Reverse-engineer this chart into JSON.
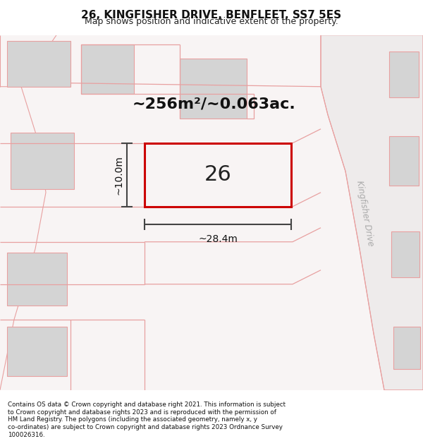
{
  "title": "26, KINGFISHER DRIVE, BENFLEET, SS7 5ES",
  "subtitle": "Map shows position and indicative extent of the property.",
  "footer_text": "Contains OS data © Crown copyright and database right 2021. This information is subject to Crown copyright and database rights 2023 and is reproduced with the permission of HM Land Registry. The polygons (including the associated geometry, namely x, y co-ordinates) are subject to Crown copyright and database rights 2023 Ordnance Survey 100026316.",
  "background_color": "#ffffff",
  "map_bg_color": "#f7f3f3",
  "plot_color": "#cc0000",
  "plot_label": "26",
  "area_text": "~256m²/~0.063ac.",
  "width_text": "~28.4m",
  "height_text": "~10.0m",
  "road_label": "Kingfisher Drive",
  "building_color": "#d4d4d4",
  "pink_line_color": "#e8a0a0",
  "road_fill_color": "#ede8e8",
  "dim_line_color": "#444444"
}
